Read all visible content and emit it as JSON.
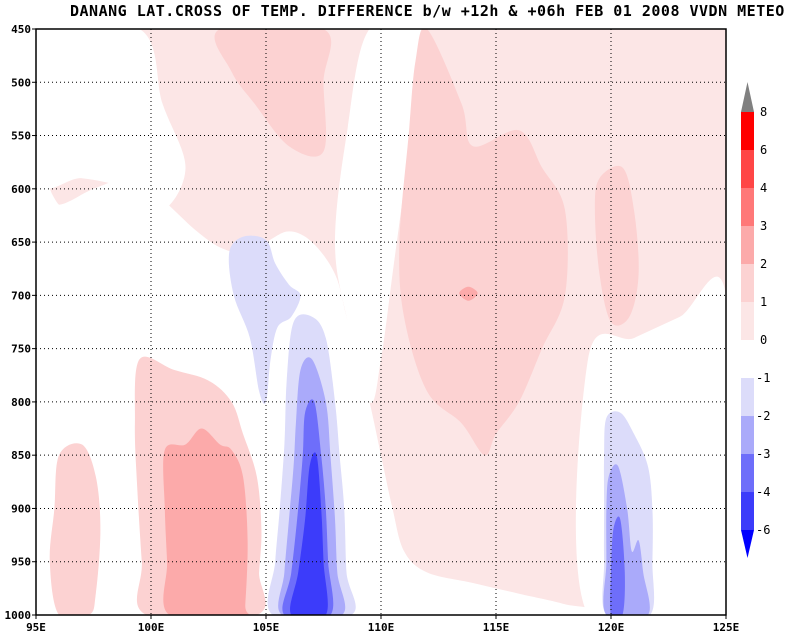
{
  "title": "DANANG LAT.CROSS OF TEMP. DIFFERENCE b/w +12h & +06h FEB 01 2008 VVDN METEO",
  "colors": {
    "frame": "#000000",
    "grid": "#000000",
    "plot_bg": "#fce6e6",
    "white_region": "#ffffff",
    "pos_1_2": "#fcd2d2",
    "pos_2_3": "#fcaaaa",
    "pos_3_4": "#ff7878",
    "pos_4_6": "#ff4646",
    "pos_6_8": "#ff0000",
    "pos_gt8": "#808080",
    "neg_1_2": "#dcdcfa",
    "neg_2_3": "#aaaafa",
    "neg_3_4": "#6e6efa",
    "neg_4_6": "#3c3cfa",
    "neg_lt6": "#0000ff"
  },
  "chart_data": {
    "type": "heatmap",
    "title": "DANANG LAT.CROSS OF TEMP. DIFFERENCE b/w +12h & +06h FEB 01 2008 VVDN METEO",
    "xlabel": "",
    "ylabel": "",
    "xlim": [
      95,
      125
    ],
    "ylim": [
      1000,
      450
    ],
    "x_ticks": [
      95,
      100,
      105,
      110,
      115,
      120,
      125
    ],
    "x_tick_labels": [
      "95E",
      "100E",
      "105E",
      "110E",
      "115E",
      "120E",
      "125E"
    ],
    "y_ticks": [
      450,
      500,
      550,
      600,
      650,
      700,
      750,
      800,
      850,
      900,
      950,
      1000
    ],
    "y_tick_labels": [
      "450",
      "500",
      "550",
      "600",
      "650",
      "700",
      "750",
      "800",
      "850",
      "900",
      "950",
      "1000"
    ],
    "grid": true,
    "colorbar": {
      "position": "right",
      "positive_levels": [
        "0",
        "1",
        "2",
        "3",
        "4",
        "6",
        "8"
      ],
      "negative_levels": [
        "-1",
        "-2",
        "-3",
        "-4",
        "-6"
      ],
      "positive_colors": [
        "#fce6e6",
        "#fcd2d2",
        "#fcaaaa",
        "#ff7878",
        "#ff4646",
        "#ff0000"
      ],
      "negative_colors": [
        "#dcdcfa",
        "#aaaafa",
        "#6e6efa",
        "#3c3cfa"
      ],
      "over_color": "#808080",
      "under_color": "#0000ff"
    },
    "regions": [
      {
        "level": "0-1",
        "color": "#ffffff",
        "points": [
          [
            95,
            605
          ],
          [
            96,
            615
          ],
          [
            97.5,
            600
          ],
          [
            99,
            590
          ],
          [
            100,
            600
          ],
          [
            101,
            620
          ],
          [
            102,
            640
          ],
          [
            103,
            655
          ],
          [
            104,
            660
          ],
          [
            105,
            650
          ],
          [
            106,
            640
          ],
          [
            107,
            650
          ],
          [
            108,
            680
          ],
          [
            108.5,
            720
          ],
          [
            109,
            760
          ],
          [
            109.5,
            800
          ],
          [
            110,
            850
          ],
          [
            110.5,
            900
          ],
          [
            111,
            940
          ],
          [
            112,
            960
          ],
          [
            114,
            970
          ],
          [
            116,
            980
          ],
          [
            118,
            990
          ],
          [
            119,
            1000
          ],
          [
            95,
            1000
          ]
        ]
      },
      {
        "level": "0-1",
        "color": "#ffffff",
        "points": [
          [
            95,
            600
          ],
          [
            96,
            615
          ],
          [
            97,
            640
          ],
          [
            98,
            680
          ],
          [
            98.5,
            720
          ],
          [
            97,
            760
          ],
          [
            95,
            780
          ]
        ]
      },
      {
        "level": "0-1",
        "color": "#ffffff",
        "points": [
          [
            109.5,
            450
          ],
          [
            112,
            450
          ],
          [
            111.5,
            520
          ],
          [
            111,
            600
          ],
          [
            110.5,
            680
          ],
          [
            110,
            760
          ],
          [
            109.5,
            800
          ],
          [
            108.5,
            720
          ],
          [
            108,
            650
          ],
          [
            108.5,
            550
          ]
        ]
      },
      {
        "level": "0-1",
        "color": "#ffffff",
        "points": [
          [
            119,
            760
          ],
          [
            121,
            740
          ],
          [
            123,
            720
          ],
          [
            125,
            700
          ],
          [
            125,
            1000
          ],
          [
            119,
            1000
          ]
        ]
      },
      {
        "level": "0-1",
        "color": "#ffffff",
        "points": [
          [
            95,
            450
          ],
          [
            99.5,
            450
          ],
          [
            100.5,
            520
          ],
          [
            101.5,
            580
          ],
          [
            100.5,
            620
          ],
          [
            99,
            600
          ],
          [
            97,
            590
          ],
          [
            95,
            590
          ]
        ]
      },
      {
        "level": "1-2",
        "color": "#fcd2d2",
        "points": [
          [
            103,
            450
          ],
          [
            107.5,
            450
          ],
          [
            107.5,
            500
          ],
          [
            107.5,
            565
          ],
          [
            106,
            560
          ],
          [
            104.5,
            520
          ],
          [
            103.5,
            490
          ]
        ]
      },
      {
        "level": "1-2",
        "color": "#fcd2d2",
        "points": [
          [
            112,
            450
          ],
          [
            113.5,
            520
          ],
          [
            114,
            560
          ],
          [
            116,
            545
          ],
          [
            117,
            580
          ],
          [
            118,
            620
          ],
          [
            118,
            700
          ],
          [
            117,
            750
          ],
          [
            116,
            800
          ],
          [
            115,
            830
          ],
          [
            114.5,
            850
          ],
          [
            113.5,
            820
          ],
          [
            112,
            790
          ],
          [
            111,
            720
          ],
          [
            110.8,
            650
          ],
          [
            111.2,
            550
          ],
          [
            111.5,
            480
          ]
        ]
      },
      {
        "level": "1-2",
        "color": "#fcd2d2",
        "points": [
          [
            119.5,
            590
          ],
          [
            120.5,
            580
          ],
          [
            121,
            620
          ],
          [
            121.2,
            680
          ],
          [
            120.8,
            720
          ],
          [
            120,
            725
          ],
          [
            119.5,
            680
          ],
          [
            119.3,
            620
          ]
        ]
      },
      {
        "level": "1-2",
        "color": "#fcd2d2",
        "points": [
          [
            96,
            850
          ],
          [
            97,
            840
          ],
          [
            97.6,
            870
          ],
          [
            97.8,
            920
          ],
          [
            97.6,
            980
          ],
          [
            97.3,
            1000
          ],
          [
            96,
            1000
          ],
          [
            95.6,
            950
          ],
          [
            95.8,
            900
          ]
        ]
      },
      {
        "level": "1-2",
        "color": "#fcd2d2",
        "points": [
          [
            99.5,
            760
          ],
          [
            101,
            770
          ],
          [
            102.5,
            780
          ],
          [
            103.5,
            800
          ],
          [
            104,
            830
          ],
          [
            104.6,
            870
          ],
          [
            104.8,
            920
          ],
          [
            104.7,
            960
          ],
          [
            104.6,
            1000
          ],
          [
            99.8,
            1000
          ],
          [
            99.6,
            950
          ],
          [
            99.4,
            880
          ],
          [
            99.3,
            820
          ]
        ]
      },
      {
        "level": "2-3",
        "color": "#fcaaaa",
        "points": [
          [
            100.6,
            845
          ],
          [
            101.5,
            840
          ],
          [
            102.2,
            825
          ],
          [
            103,
            840
          ],
          [
            103.5,
            845
          ],
          [
            104,
            870
          ],
          [
            104.2,
            930
          ],
          [
            104.1,
            990
          ],
          [
            104,
            1000
          ],
          [
            100.8,
            1000
          ],
          [
            100.7,
            950
          ],
          [
            100.6,
            900
          ]
        ]
      },
      {
        "level": "2-3",
        "color": "#fcaaaa",
        "points": [
          [
            113.4,
            698
          ],
          [
            113.8,
            692
          ],
          [
            114.2,
            698
          ],
          [
            113.8,
            705
          ]
        ]
      },
      {
        "level": "-1--2",
        "color": "#dcdcfa",
        "points": [
          [
            103.4,
            660
          ],
          [
            104,
            645
          ],
          [
            105,
            648
          ],
          [
            105.4,
            670
          ],
          [
            106,
            690
          ],
          [
            106.5,
            700
          ],
          [
            106.1,
            720
          ],
          [
            105.5,
            730
          ],
          [
            105.2,
            760
          ],
          [
            105,
            800
          ],
          [
            104.7,
            790
          ],
          [
            104.3,
            740
          ],
          [
            103.6,
            700
          ]
        ]
      },
      {
        "level": "-1--2",
        "color": "#dcdcfa",
        "points": [
          [
            106.2,
            725
          ],
          [
            107,
            720
          ],
          [
            107.6,
            740
          ],
          [
            108,
            800
          ],
          [
            108.2,
            850
          ],
          [
            108.4,
            900
          ],
          [
            108.5,
            960
          ],
          [
            108.7,
            1000
          ],
          [
            105.3,
            1000
          ],
          [
            105.4,
            950
          ],
          [
            105.6,
            900
          ],
          [
            105.8,
            840
          ],
          [
            105.9,
            780
          ]
        ]
      },
      {
        "level": "-1--2",
        "color": "#dcdcfa",
        "points": [
          [
            119.8,
            815
          ],
          [
            120.4,
            810
          ],
          [
            121,
            830
          ],
          [
            121.6,
            860
          ],
          [
            121.8,
            900
          ],
          [
            121.8,
            950
          ],
          [
            121.7,
            1000
          ],
          [
            119.8,
            1000
          ],
          [
            119.7,
            950
          ],
          [
            119.7,
            900
          ],
          [
            119.7,
            850
          ]
        ]
      },
      {
        "level": "-2--3",
        "color": "#aaaafa",
        "points": [
          [
            106.5,
            770
          ],
          [
            107,
            760
          ],
          [
            107.6,
            800
          ],
          [
            107.8,
            850
          ],
          [
            108,
            910
          ],
          [
            108.1,
            960
          ],
          [
            108.3,
            1000
          ],
          [
            105.7,
            1000
          ],
          [
            105.8,
            960
          ],
          [
            106,
            910
          ],
          [
            106.2,
            860
          ],
          [
            106.3,
            820
          ]
        ]
      },
      {
        "level": "-2--3",
        "color": "#aaaafa",
        "points": [
          [
            119.9,
            870
          ],
          [
            120.3,
            860
          ],
          [
            120.7,
            900
          ],
          [
            120.9,
            940
          ],
          [
            121.2,
            930
          ],
          [
            121.4,
            960
          ],
          [
            121.6,
            1000
          ],
          [
            119.8,
            1000
          ],
          [
            119.8,
            950
          ],
          [
            119.8,
            900
          ]
        ]
      },
      {
        "level": "-3--4",
        "color": "#6e6efa",
        "points": [
          [
            106.7,
            810
          ],
          [
            107.1,
            800
          ],
          [
            107.4,
            850
          ],
          [
            107.6,
            900
          ],
          [
            107.7,
            950
          ],
          [
            107.8,
            1000
          ],
          [
            105.8,
            1000
          ],
          [
            106.1,
            960
          ],
          [
            106.4,
            900
          ],
          [
            106.6,
            850
          ]
        ]
      },
      {
        "level": "-3--4",
        "color": "#6e6efa",
        "points": [
          [
            120.1,
            920
          ],
          [
            120.4,
            910
          ],
          [
            120.6,
            960
          ],
          [
            120.5,
            1000
          ],
          [
            120,
            1000
          ],
          [
            120,
            960
          ]
        ]
      },
      {
        "level": "-4--6",
        "color": "#3c3cfa",
        "points": [
          [
            106.9,
            860
          ],
          [
            107.2,
            850
          ],
          [
            107.4,
            900
          ],
          [
            107.5,
            950
          ],
          [
            107.6,
            1000
          ],
          [
            106.1,
            1000
          ],
          [
            106.4,
            960
          ],
          [
            106.7,
            910
          ]
        ]
      }
    ]
  }
}
